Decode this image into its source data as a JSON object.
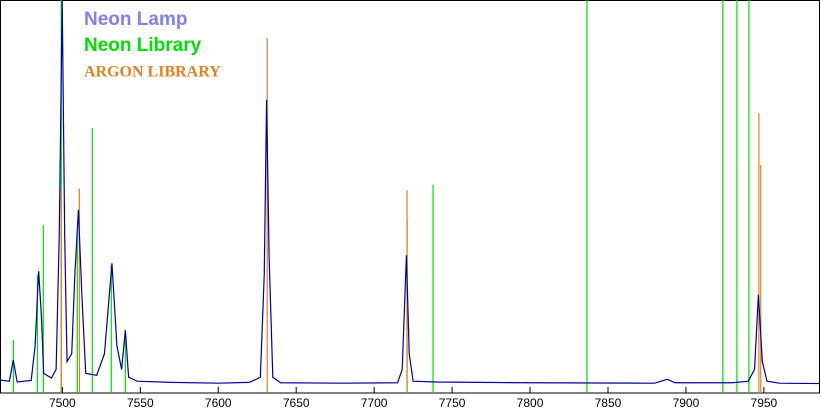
{
  "chart_data": {
    "type": "line",
    "xlim": [
      7460,
      7986
    ],
    "ylim": [
      0,
      100
    ],
    "xticks": [
      7500,
      7550,
      7600,
      7650,
      7700,
      7750,
      7800,
      7850,
      7900,
      7950
    ],
    "series": [
      {
        "name": "Neon Lamp",
        "style": "line",
        "color": "#0000a0",
        "legend_color": "#8080f0",
        "x": [
          7460,
          7466,
          7468.5,
          7471,
          7480,
          7482.5,
          7484.8,
          7486.5,
          7488,
          7493,
          7496,
          7498,
          7499.9,
          7501.5,
          7503,
          7506,
          7508,
          7510.3,
          7512.5,
          7515,
          7522,
          7527,
          7531.8,
          7535,
          7538,
          7540.4,
          7542.5,
          7548,
          7570,
          7600,
          7620,
          7627,
          7629.5,
          7631,
          7632.6,
          7635,
          7640,
          7680,
          7715,
          7718,
          7720.7,
          7722.5,
          7725,
          7740,
          7800,
          7880,
          7888,
          7893,
          7930,
          7940,
          7944,
          7946.5,
          7949,
          7952,
          7960,
          7986
        ],
        "values": [
          3.3,
          3.0,
          8.4,
          2.8,
          3.2,
          12,
          31,
          20,
          5,
          3.8,
          6,
          40,
          100,
          40,
          8,
          10,
          30,
          46.6,
          25,
          5,
          4.5,
          10,
          33,
          12,
          6,
          16,
          4,
          3,
          2.7,
          2.5,
          2.7,
          4,
          30,
          74.6,
          35,
          4,
          2.6,
          2.5,
          2.6,
          6,
          35,
          10,
          3,
          2.8,
          2.6,
          2.5,
          3.5,
          2.6,
          2.6,
          3,
          6,
          25,
          8,
          3,
          2.5,
          2.4
        ]
      },
      {
        "name": "Neon Library",
        "style": "stick",
        "color": "#00e000",
        "legend_color": "#00e000",
        "x": [
          7468.6,
          7484,
          7487.8,
          7499.3,
          7509.6,
          7519.2,
          7531.4,
          7540.4,
          7721.1,
          7737.8,
          7836.5,
          7923.7,
          7932.7,
          7940.4
        ],
        "values": [
          13.5,
          30,
          42.7,
          105,
          41.5,
          67.4,
          32.6,
          16,
          44,
          53,
          105,
          105,
          105,
          105
        ]
      },
      {
        "name": "ARGON LIBRARY",
        "style": "stick",
        "color": "#e08020",
        "legend_color": "#e08020",
        "x": [
          7499.3,
          7510.9,
          7631.4,
          7721.1,
          7946.8,
          7948
        ],
        "values": [
          51.7,
          52,
          90.3,
          51.7,
          71.2,
          58
        ]
      }
    ]
  }
}
